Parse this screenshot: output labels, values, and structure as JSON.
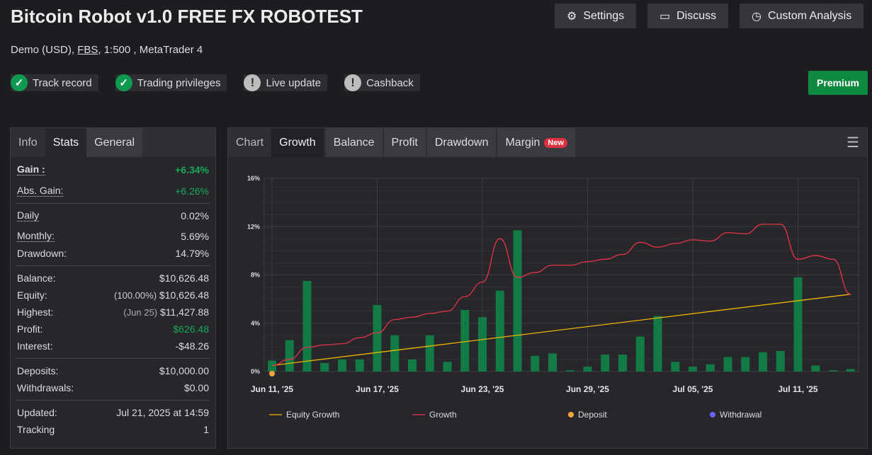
{
  "header": {
    "title": "Bitcoin Robot v1.0 FREE FX ROBOTEST",
    "sub_pre": "Demo (USD), ",
    "broker": "FBS",
    "sub_post": ", 1:500 , MetaTrader 4",
    "buttons": [
      {
        "label": "Settings",
        "icon": "gear-icon"
      },
      {
        "label": "Discuss",
        "icon": "chat-icon"
      },
      {
        "label": "Custom Analysis",
        "icon": "clock-icon"
      }
    ],
    "badges": [
      {
        "label": "Track record",
        "status": "ok"
      },
      {
        "label": "Trading privileges",
        "status": "ok"
      },
      {
        "label": "Live update",
        "status": "warn"
      },
      {
        "label": "Cashback",
        "status": "warn"
      }
    ],
    "premium": "Premium"
  },
  "stats": {
    "tabs": [
      "Info",
      "Stats",
      "General"
    ],
    "gain": {
      "label": "Gain :",
      "value": "+6.34%"
    },
    "abs_gain": {
      "label": "Abs. Gain:",
      "value": "+6.26%"
    },
    "daily": {
      "label": "Daily",
      "value": "0.02%"
    },
    "monthly": {
      "label": "Monthly:",
      "value": "5.69%"
    },
    "drawdown": {
      "label": "Drawdown:",
      "value": "14.79%"
    },
    "balance": {
      "label": "Balance:",
      "value": "$10,626.48"
    },
    "equity": {
      "label": "Equity:",
      "note": "(100.00%)",
      "value": "$10,626.48"
    },
    "highest": {
      "label": "Highest:",
      "note": "(Jun 25)",
      "value": "$11,427.88"
    },
    "profit": {
      "label": "Profit:",
      "value": "$626.48"
    },
    "interest": {
      "label": "Interest:",
      "value": "-$48.26"
    },
    "deposits": {
      "label": "Deposits:",
      "value": "$10,000.00"
    },
    "withdrawals": {
      "label": "Withdrawals:",
      "value": "$0.00"
    },
    "updated": {
      "label": "Updated:",
      "value": "Jul 21, 2025 at 14:59"
    },
    "tracking": {
      "label": "Tracking",
      "value": "1"
    }
  },
  "chart_tabs": {
    "items": [
      "Chart",
      "Growth",
      "Balance",
      "Profit",
      "Drawdown",
      "Margin"
    ],
    "new_badge": "New",
    "active": "Growth"
  },
  "chart_data": {
    "type": "bar",
    "y_ticks": [
      "0%",
      "4%",
      "8%",
      "12%",
      "16%"
    ],
    "ylim": [
      0,
      16
    ],
    "x_ticks": [
      {
        "i": 0,
        "label": "Jun 11, '25"
      },
      {
        "i": 6,
        "label": "Jun 17, '25"
      },
      {
        "i": 12,
        "label": "Jun 23, '25"
      },
      {
        "i": 18,
        "label": "Jun 29, '25"
      },
      {
        "i": 24,
        "label": "Jul 05, '25"
      },
      {
        "i": 30,
        "label": "Jul 11, '25"
      }
    ],
    "bars": [
      0.9,
      2.6,
      7.5,
      0.7,
      1.0,
      1.0,
      5.5,
      3.0,
      1.0,
      3.0,
      0.8,
      5.1,
      4.5,
      6.7,
      11.7,
      1.3,
      1.5,
      0.1,
      0.4,
      1.4,
      1.4,
      2.9,
      4.6,
      0.8,
      0.4,
      0.6,
      1.2,
      1.2,
      1.6,
      1.7,
      7.8,
      0.5,
      0.1,
      0.2
    ],
    "growth": [
      0.5,
      1.0,
      2.0,
      2.2,
      2.3,
      2.8,
      3.2,
      4.3,
      4.5,
      4.8,
      5.0,
      6.2,
      7.4,
      11.0,
      7.8,
      8.2,
      8.8,
      8.8,
      9.1,
      9.3,
      9.7,
      10.7,
      10.3,
      10.6,
      10.9,
      10.8,
      11.5,
      11.4,
      12.2,
      12.2,
      9.3,
      9.6,
      9.3,
      6.4
    ],
    "equity_growth": [
      0.5,
      6.4
    ],
    "deposit_points": [
      {
        "i": 0,
        "value": 0
      }
    ],
    "legend": [
      {
        "label": "Equity Growth",
        "color": "#f0b400",
        "kind": "line"
      },
      {
        "label": "Growth",
        "color": "#e8334a",
        "kind": "line"
      },
      {
        "label": "Deposit",
        "color": "#f5a63a",
        "kind": "dot"
      },
      {
        "label": "Withdrawal",
        "color": "#6a63f0",
        "kind": "dot"
      }
    ],
    "bar_color": "#127a45"
  }
}
